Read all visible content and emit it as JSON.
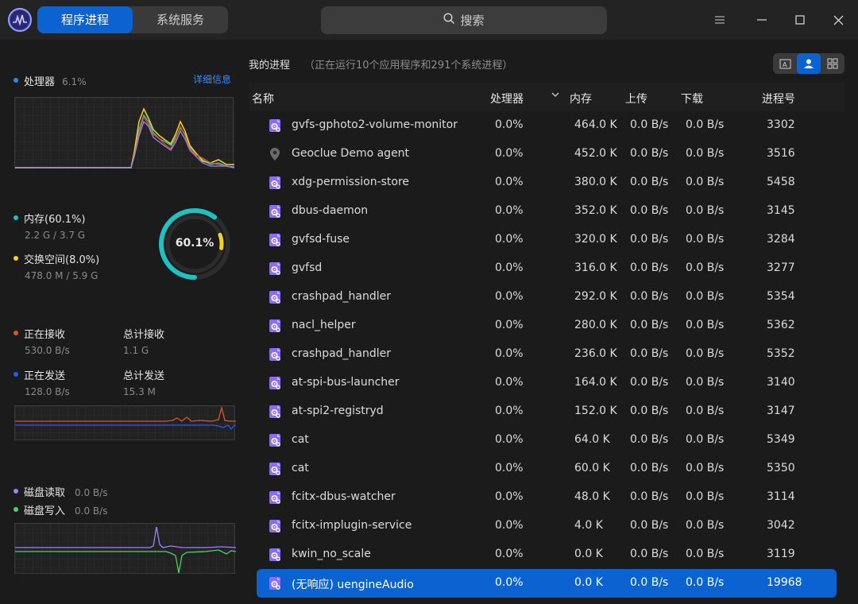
{
  "tabs": [
    {
      "label": "程序进程",
      "active": true
    },
    {
      "label": "系统服务",
      "active": false
    }
  ],
  "search": {
    "label": "搜索"
  },
  "cpu": {
    "label": "处理器",
    "value": "6.1%",
    "detail_link": "详细信息"
  },
  "memory": {
    "mem_label": "内存(60.1%)",
    "mem_value": "2.2 G / 3.7 G",
    "swap_label": "交换空间(8.0%)",
    "swap_value": "478.0 M / 5.9 G",
    "ring_percent": "60.1%",
    "mem_fraction": 0.601,
    "swap_fraction": 0.08
  },
  "network": {
    "recv_label": "正在接收",
    "recv_value": "530.0 B/s",
    "total_recv_label": "总计接收",
    "total_recv_value": "1.1 G",
    "send_label": "正在发送",
    "send_value": "128.0 B/s",
    "total_send_label": "总计发送",
    "total_send_value": "15.3 M"
  },
  "disk": {
    "read_label": "磁盘读取",
    "read_value": "0.0 B/s",
    "write_label": "磁盘写入",
    "write_value": "0.0 B/s"
  },
  "colors": {
    "accent": "#0a63d0",
    "mem": "#1ec2c0",
    "swap": "#f3d31f",
    "recv": "#e0561f",
    "send": "#1f5bff",
    "disk_read": "#9b84ff",
    "disk_write": "#4fd26a"
  },
  "process_header": {
    "title": "我的进程",
    "desc": "（正在运行10个应用程序和291个系统进程）"
  },
  "columns": {
    "name": "名称",
    "cpu": "处理器",
    "mem": "内存",
    "upload": "上传",
    "download": "下载",
    "pid": "进程号"
  },
  "processes": [
    {
      "icon": "gear-icon",
      "name": "gvfs-gphoto2-volume-monitor",
      "cpu": "0.0%",
      "mem": "464.0 K",
      "up": "0.0 B/s",
      "down": "0.0 B/s",
      "pid": "3302"
    },
    {
      "icon": "map-pin-icon",
      "name": "Geoclue Demo agent",
      "cpu": "0.0%",
      "mem": "452.0 K",
      "up": "0.0 B/s",
      "down": "0.0 B/s",
      "pid": "3516"
    },
    {
      "icon": "gear-icon",
      "name": "xdg-permission-store",
      "cpu": "0.0%",
      "mem": "380.0 K",
      "up": "0.0 B/s",
      "down": "0.0 B/s",
      "pid": "5458"
    },
    {
      "icon": "gear-icon",
      "name": "dbus-daemon",
      "cpu": "0.0%",
      "mem": "352.0 K",
      "up": "0.0 B/s",
      "down": "0.0 B/s",
      "pid": "3145"
    },
    {
      "icon": "gear-icon",
      "name": "gvfsd-fuse",
      "cpu": "0.0%",
      "mem": "320.0 K",
      "up": "0.0 B/s",
      "down": "0.0 B/s",
      "pid": "3284"
    },
    {
      "icon": "gear-icon",
      "name": "gvfsd",
      "cpu": "0.0%",
      "mem": "316.0 K",
      "up": "0.0 B/s",
      "down": "0.0 B/s",
      "pid": "3277"
    },
    {
      "icon": "gear-icon",
      "name": "crashpad_handler",
      "cpu": "0.0%",
      "mem": "292.0 K",
      "up": "0.0 B/s",
      "down": "0.0 B/s",
      "pid": "5354"
    },
    {
      "icon": "gear-icon",
      "name": "nacl_helper",
      "cpu": "0.0%",
      "mem": "280.0 K",
      "up": "0.0 B/s",
      "down": "0.0 B/s",
      "pid": "5362"
    },
    {
      "icon": "gear-icon",
      "name": "crashpad_handler",
      "cpu": "0.0%",
      "mem": "236.0 K",
      "up": "0.0 B/s",
      "down": "0.0 B/s",
      "pid": "5352"
    },
    {
      "icon": "gear-icon",
      "name": "at-spi-bus-launcher",
      "cpu": "0.0%",
      "mem": "164.0 K",
      "up": "0.0 B/s",
      "down": "0.0 B/s",
      "pid": "3140"
    },
    {
      "icon": "gear-icon",
      "name": "at-spi2-registryd",
      "cpu": "0.0%",
      "mem": "152.0 K",
      "up": "0.0 B/s",
      "down": "0.0 B/s",
      "pid": "3147"
    },
    {
      "icon": "gear-icon",
      "name": "cat",
      "cpu": "0.0%",
      "mem": "64.0 K",
      "up": "0.0 B/s",
      "down": "0.0 B/s",
      "pid": "5349"
    },
    {
      "icon": "gear-icon",
      "name": "cat",
      "cpu": "0.0%",
      "mem": "60.0 K",
      "up": "0.0 B/s",
      "down": "0.0 B/s",
      "pid": "5350"
    },
    {
      "icon": "gear-icon",
      "name": "fcitx-dbus-watcher",
      "cpu": "0.0%",
      "mem": "48.0 K",
      "up": "0.0 B/s",
      "down": "0.0 B/s",
      "pid": "3114"
    },
    {
      "icon": "gear-icon",
      "name": "fcitx-implugin-service",
      "cpu": "0.0%",
      "mem": "4.0 K",
      "up": "0.0 B/s",
      "down": "0.0 B/s",
      "pid": "3042"
    },
    {
      "icon": "gear-icon",
      "name": "kwin_no_scale",
      "cpu": "0.0%",
      "mem": "0.0 K",
      "up": "0.0 B/s",
      "down": "0.0 B/s",
      "pid": "3119"
    },
    {
      "icon": "gear-icon",
      "name": "(无响应) uengineAudio",
      "cpu": "0.0%",
      "mem": "0.0 K",
      "up": "0.0 B/s",
      "down": "0.0 B/s",
      "pid": "19968",
      "selected": true
    }
  ]
}
